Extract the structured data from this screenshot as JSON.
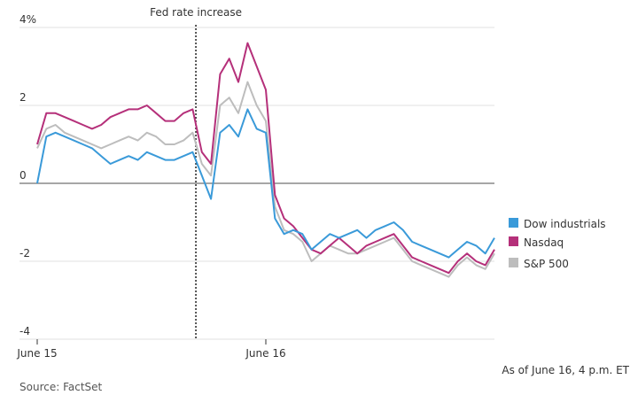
{
  "chart_data": {
    "type": "line",
    "annotation": {
      "text": "Fed rate increase",
      "x": 34.7
    },
    "x": [
      0,
      2,
      4,
      6,
      8,
      10,
      12,
      14,
      16,
      18,
      20,
      22,
      24,
      26,
      28,
      30,
      32,
      34,
      36,
      38,
      40,
      42,
      44,
      46,
      48,
      50,
      52,
      54,
      56,
      58,
      60,
      62,
      64,
      66,
      68,
      70,
      72,
      74,
      76,
      78,
      80,
      82,
      84,
      86,
      88,
      90,
      92,
      94,
      96,
      98,
      100
    ],
    "xlim": [
      0,
      100
    ],
    "xticks": [
      {
        "value": 0,
        "label": "June 15"
      },
      {
        "value": 50,
        "label": "June 16"
      }
    ],
    "ylim": [
      -4,
      4
    ],
    "yticks": [
      {
        "value": 4,
        "label": "4%"
      },
      2,
      0,
      -2,
      -4
    ],
    "grid": true,
    "legend": "right",
    "series": [
      {
        "name": "Dow industrials",
        "color": "#3a9ad9",
        "values": [
          0,
          1.2,
          1.3,
          1.2,
          1.1,
          1.0,
          0.9,
          0.7,
          0.5,
          0.6,
          0.7,
          0.6,
          0.8,
          0.7,
          0.6,
          0.6,
          0.7,
          0.8,
          0.2,
          -0.4,
          1.3,
          1.5,
          1.2,
          1.9,
          1.4,
          1.3,
          -0.9,
          -1.3,
          -1.2,
          -1.3,
          -1.7,
          -1.5,
          -1.3,
          -1.4,
          -1.3,
          -1.2,
          -1.4,
          -1.2,
          -1.1,
          -1.0,
          -1.2,
          -1.5,
          -1.6,
          -1.7,
          -1.8,
          -1.9,
          -1.7,
          -1.5,
          -1.6,
          -1.8,
          -1.4
        ]
      },
      {
        "name": "Nasdaq",
        "color": "#b5307a",
        "values": [
          1.0,
          1.8,
          1.8,
          1.7,
          1.6,
          1.5,
          1.4,
          1.5,
          1.7,
          1.8,
          1.9,
          1.9,
          2.0,
          1.8,
          1.6,
          1.6,
          1.8,
          1.9,
          0.8,
          0.5,
          2.8,
          3.2,
          2.6,
          3.6,
          3.0,
          2.4,
          -0.3,
          -0.9,
          -1.1,
          -1.4,
          -1.7,
          -1.8,
          -1.6,
          -1.4,
          -1.6,
          -1.8,
          -1.6,
          -1.5,
          -1.4,
          -1.3,
          -1.6,
          -1.9,
          -2.0,
          -2.1,
          -2.2,
          -2.3,
          -2.0,
          -1.8,
          -2.0,
          -2.1,
          -1.7
        ]
      },
      {
        "name": "S&P 500",
        "color": "#bdbdbd",
        "values": [
          0.9,
          1.4,
          1.5,
          1.3,
          1.2,
          1.1,
          1.0,
          0.9,
          1.0,
          1.1,
          1.2,
          1.1,
          1.3,
          1.2,
          1.0,
          1.0,
          1.1,
          1.3,
          0.5,
          0.2,
          2.0,
          2.2,
          1.8,
          2.6,
          2.0,
          1.6,
          -0.6,
          -1.2,
          -1.3,
          -1.5,
          -2.0,
          -1.8,
          -1.6,
          -1.7,
          -1.8,
          -1.8,
          -1.7,
          -1.6,
          -1.5,
          -1.4,
          -1.7,
          -2.0,
          -2.1,
          -2.2,
          -2.3,
          -2.4,
          -2.1,
          -1.9,
          -2.1,
          -2.2,
          -1.8
        ]
      }
    ],
    "note": "As of June 16, 4 p.m. ET",
    "source": "Source: FactSet"
  }
}
